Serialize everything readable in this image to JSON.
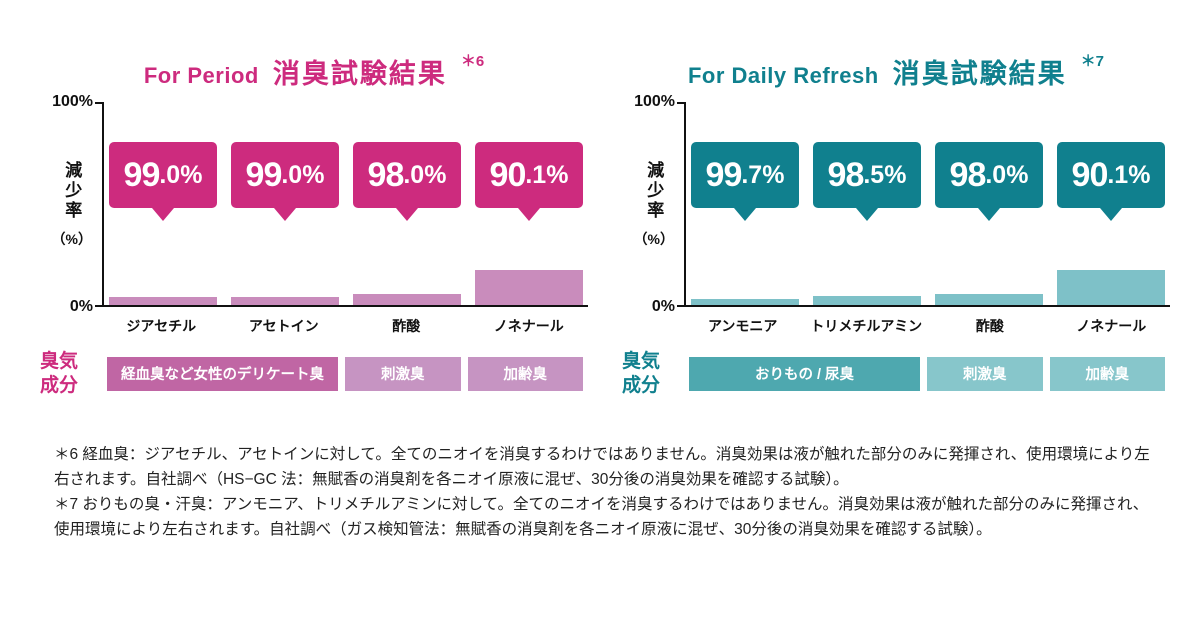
{
  "page": {
    "background": "#ffffff"
  },
  "chart_data": [
    {
      "type": "bar",
      "brand_label": "For Period",
      "title": "消臭試験結果",
      "note_ref": "＊6",
      "accent_color": "#cd2b7e",
      "bar_color": "#c98cbc",
      "odor_primary_color": "#c066a4",
      "odor_secondary_color": "#c694c2",
      "ylabel": "減少率",
      "ylabel_unit": "（%）",
      "yticks": [
        "100%",
        "0%"
      ],
      "ylim": [
        0,
        100
      ],
      "categories": [
        "ジアセチル",
        "アセトイン",
        "酢酸",
        "ノネナール"
      ],
      "values": [
        99.0,
        99.0,
        98.0,
        90.1
      ],
      "value_labels": [
        "99.0%",
        "99.0%",
        "98.0%",
        "90.1%"
      ],
      "odor_row_label": "臭気\n成分",
      "odor_groups": [
        {
          "label": "経血臭など女性のデリケート臭",
          "span": 2,
          "tone": "primary"
        },
        {
          "label": "刺激臭",
          "span": 1,
          "tone": "secondary"
        },
        {
          "label": "加齢臭",
          "span": 1,
          "tone": "secondary"
        }
      ]
    },
    {
      "type": "bar",
      "brand_label": "For Daily Refresh",
      "title": "消臭試験結果",
      "note_ref": "＊7",
      "accent_color": "#10808e",
      "bar_color": "#7ec1c8",
      "odor_primary_color": "#4ea8af",
      "odor_secondary_color": "#87c6cb",
      "ylabel": "減少率",
      "ylabel_unit": "（%）",
      "yticks": [
        "100%",
        "0%"
      ],
      "ylim": [
        0,
        100
      ],
      "categories": [
        "アンモニア",
        "トリメチルアミン",
        "酢酸",
        "ノネナール"
      ],
      "values": [
        99.7,
        98.5,
        98.0,
        90.1
      ],
      "value_labels": [
        "99.7%",
        "98.5%",
        "98.0%",
        "90.1%"
      ],
      "odor_row_label": "臭気\n成分",
      "odor_groups": [
        {
          "label": "おりもの / 尿臭",
          "span": 2,
          "tone": "primary"
        },
        {
          "label": "刺激臭",
          "span": 1,
          "tone": "secondary"
        },
        {
          "label": "加齢臭",
          "span": 1,
          "tone": "secondary"
        }
      ]
    }
  ],
  "notes": [
    "＊6 経血臭：ジアセチル、アセトインに対して。全てのニオイを消臭するわけではありません。消臭効果は液が触れた部分のみに発揮され、使用環境により左右されます。自社調べ（HS−GC 法：無賦香の消臭剤を各ニオイ原液に混ぜ、30分後の消臭効果を確認する試験）。",
    "＊7 おりもの臭・汗臭：アンモニア、トリメチルアミンに対して。全てのニオイを消臭するわけではありません。消臭効果は液が触れた部分のみに発揮され、使用環境により左右されます。自社調べ（ガス検知管法：無賦香の消臭剤を各ニオイ原液に混ぜ、30分後の消臭効果を確認する試験）。"
  ]
}
